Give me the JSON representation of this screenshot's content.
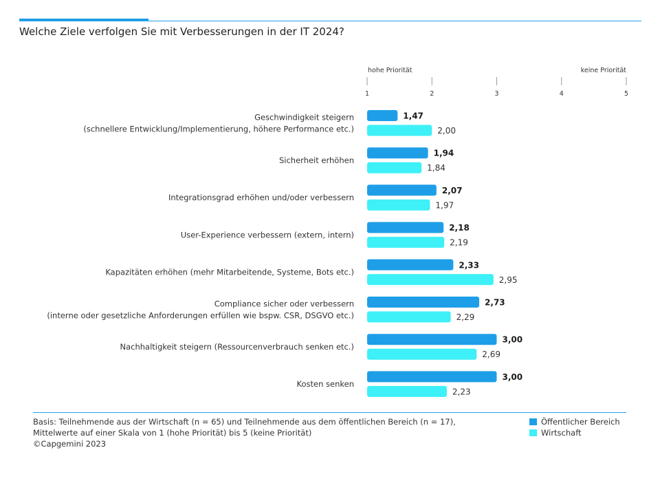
{
  "title": "Welche Ziele verfolgen Sie mit Verbesserungen in der IT 2024?",
  "axis": {
    "left_label": "hohe Priorität",
    "right_label": "keine Priorität",
    "ticks": [
      "1",
      "2",
      "3",
      "4",
      "5"
    ]
  },
  "colors": {
    "accent": "#1f9ee8",
    "public": "#1f9ee8",
    "business": "#3ef0f7"
  },
  "chart_data": {
    "type": "bar",
    "orientation": "horizontal",
    "xlim": [
      1,
      5
    ],
    "ticks": [
      1,
      2,
      3,
      4,
      5
    ],
    "categories": [
      [
        "Geschwindigkeit steigern",
        "(schnellere Entwicklung/Implementierung, höhere Performance etc.)"
      ],
      [
        "Sicherheit erhöhen"
      ],
      [
        "Integrationsgrad erhöhen und/oder verbessern"
      ],
      [
        "User-Experience verbessern (extern, intern)"
      ],
      [
        "Kapazitäten erhöhen (mehr Mitarbeitende, Systeme, Bots etc.)"
      ],
      [
        "Compliance sicher oder verbessern",
        "(interne oder gesetzliche Anforderungen erfüllen wie bspw. CSR, DSGVO etc.)"
      ],
      [
        "Nachhaltigkeit steigern (Ressourcenverbrauch senken etc.)"
      ],
      [
        "Kosten senken"
      ]
    ],
    "series": [
      {
        "name": "Öffentlicher Bereich",
        "values": [
          1.47,
          1.94,
          2.07,
          2.18,
          2.33,
          2.73,
          3.0,
          3.0
        ],
        "labels": [
          "1,47",
          "1,94",
          "2,07",
          "2,18",
          "2,33",
          "2,73",
          "3,00",
          "3,00"
        ]
      },
      {
        "name": "Wirtschaft",
        "values": [
          2.0,
          1.84,
          1.97,
          2.19,
          2.95,
          2.29,
          2.69,
          2.23
        ],
        "labels": [
          "2,00",
          "1,84",
          "1,97",
          "2,19",
          "2,95",
          "2,29",
          "2,69",
          "2,23"
        ]
      }
    ],
    "legend_position": "bottom-right"
  },
  "footnote": {
    "line1": "Basis: Teilnehmende aus der Wirtschaft (n = 65) und Teilnehmende aus dem öffentlichen Bereich (n = 17),",
    "line2": "Mittelwerte auf einer Skala von 1 (hohe Priorität) bis 5 (keine Priorität)",
    "line3": "©Capgemini 2023"
  },
  "legend": {
    "public": "Öffentlicher Bereich",
    "business": "Wirtschaft"
  }
}
